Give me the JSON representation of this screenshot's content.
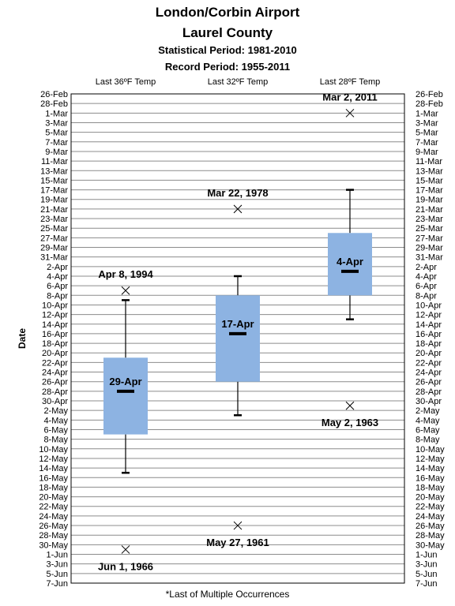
{
  "chart_data": {
    "type": "box",
    "title": "London/Corbin  Airport",
    "subtitle": "Laurel County",
    "statistical_period": "Statistical Period: 1981-2010",
    "record_period": "Record Period: 1955-2011",
    "ylabel": "Date",
    "footnote": "*Last of Multiple Occurrences",
    "y_ticks": [
      "26-Feb",
      "28-Feb",
      "1-Mar",
      "3-Mar",
      "5-Mar",
      "7-Mar",
      "9-Mar",
      "11-Mar",
      "13-Mar",
      "15-Mar",
      "17-Mar",
      "19-Mar",
      "21-Mar",
      "23-Mar",
      "25-Mar",
      "27-Mar",
      "29-Mar",
      "31-Mar",
      "2-Apr",
      "4-Apr",
      "6-Apr",
      "8-Apr",
      "10-Apr",
      "12-Apr",
      "14-Apr",
      "16-Apr",
      "18-Apr",
      "20-Apr",
      "22-Apr",
      "24-Apr",
      "26-Apr",
      "28-Apr",
      "30-Apr",
      "2-May",
      "4-May",
      "6-May",
      "8-May",
      "10-May",
      "12-May",
      "14-May",
      "16-May",
      "18-May",
      "20-May",
      "22-May",
      "24-May",
      "26-May",
      "28-May",
      "30-May",
      "1-Jun",
      "3-Jun",
      "5-Jun",
      "7-Jun"
    ],
    "ylim": [
      "26-Feb",
      "7-Jun"
    ],
    "grid": true,
    "categories": [
      "Last 36ºF Temp",
      "Last 32ºF Temp",
      "Last 28ºF Temp"
    ],
    "box_color": "#8db3e2",
    "series": [
      {
        "category": "Last 36ºF Temp",
        "whisker_low": "10-Apr",
        "q1": "22-Apr",
        "median": "29-Apr",
        "q3": "8-May",
        "whisker_high": "16-May",
        "median_label": "29-Apr",
        "records": [
          {
            "date": "8-Apr",
            "label": "Apr 8, 1994",
            "label_pos": "above"
          },
          {
            "date": "1-Jun",
            "label": "Jun 1, 1966",
            "label_pos": "below"
          }
        ]
      },
      {
        "category": "Last 32ºF Temp",
        "whisker_low": "5-Apr",
        "q1": "9-Apr",
        "median": "17-Apr",
        "q3": "27-Apr",
        "whisker_high": "4-May",
        "median_label": "17-Apr",
        "records": [
          {
            "date": "22-Mar",
            "label": "Mar 22, 1978",
            "label_pos": "above"
          },
          {
            "date": "27-May",
            "label": "May 27, 1961",
            "label_pos": "below"
          }
        ]
      },
      {
        "category": "Last 28ºF Temp",
        "whisker_low": "14-Apr",
        "q1": "27-Mar",
        "median": "4-Apr",
        "q3": "9-Apr",
        "whisker_high": "18-Mar",
        "median_label": "4-Apr",
        "records": [
          {
            "date": "2-Mar",
            "label": "Mar 2, 2011",
            "label_pos": "above"
          },
          {
            "date": "2-May",
            "label": "May 2, 1963",
            "label_pos": "below"
          }
        ]
      }
    ]
  }
}
